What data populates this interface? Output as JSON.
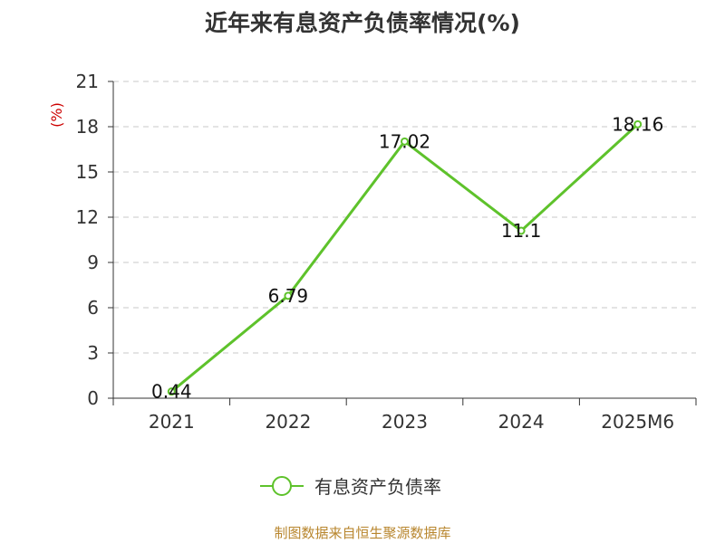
{
  "chart_data": {
    "type": "line",
    "title": "近年来有息资产负债率情况(%)",
    "ylabel": "(%)",
    "xlabel": "",
    "categories": [
      "2021",
      "2022",
      "2023",
      "2024",
      "2025M6"
    ],
    "series": [
      {
        "name": "有息资产负债率",
        "values": [
          0.44,
          6.79,
          17.02,
          11.1,
          18.16
        ],
        "labels": [
          "0.44",
          "6.79",
          "17.02",
          "11.1",
          "18.16"
        ],
        "color": "#5ec22b"
      }
    ],
    "ylim": [
      0,
      21
    ],
    "yticks": [
      "0",
      "3",
      "6",
      "9",
      "12",
      "15",
      "18",
      "21"
    ],
    "grid": true,
    "legend_position": "bottom"
  },
  "source": "制图数据来自恒生聚源数据库",
  "colors": {
    "axis": "#333333",
    "grid": "#c8c8c8",
    "ylabel": "#cc0000",
    "source": "#b8862e"
  }
}
